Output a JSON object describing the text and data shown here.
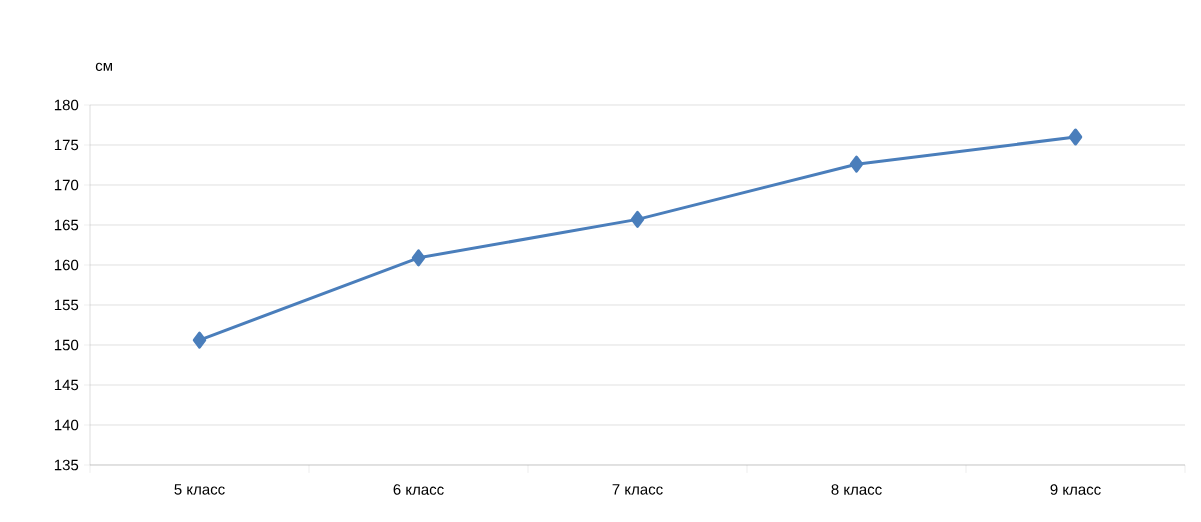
{
  "chart_data": {
    "type": "line",
    "ylabel": "см",
    "categories": [
      "5 класс",
      "6 класс",
      "7 класс",
      "8 класс",
      "9 класс"
    ],
    "series": [
      {
        "color": "#4a7ebb",
        "values": [
          150.6,
          160.9,
          165.7,
          172.6,
          176.0
        ]
      }
    ],
    "ylim": [
      135,
      180
    ],
    "yticks": [
      135,
      140,
      145,
      150,
      155,
      160,
      165,
      170,
      175,
      180
    ],
    "grid": "y",
    "marker": "diamond",
    "line_style": "solid"
  }
}
